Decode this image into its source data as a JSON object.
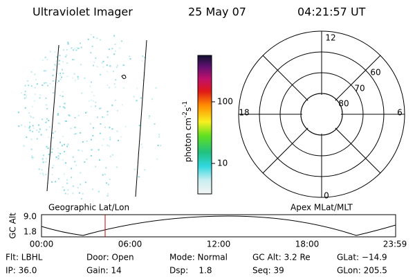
{
  "header": {
    "instrument": "Ultraviolet Imager",
    "date": "25 May 07",
    "time": "04:21:57 UT"
  },
  "colorbar": {
    "label": {
      "base": "photon cm",
      "exp1": "-2",
      "unit2": "s",
      "exp2": "-1"
    },
    "ticks": [
      "100",
      "10"
    ]
  },
  "polar_plot": {
    "mlt_labels": {
      "top": "12",
      "left": "18",
      "right": "6",
      "bottom": "0"
    },
    "lat_labels": [
      "60",
      "70",
      "80"
    ]
  },
  "orbit_plot": {
    "left_title": "Geographic Lat/Lon",
    "right_title": "Apex MLat/MLT",
    "y_label": "GC Alt",
    "y_ticks": [
      "9.0",
      "1.8"
    ],
    "x_ticks": [
      "00:00",
      "06:00",
      "12:00",
      "18:00",
      "23:59"
    ]
  },
  "info": {
    "rows": [
      [
        "Flt: LBHL",
        "Door: Open",
        "Mode: Normal",
        "GC Alt: 3.2 Re",
        "GLat: −14.9"
      ],
      [
        "IP: 36.0",
        "Gain: 14",
        "Dsp:    1.8",
        "Seq: 39",
        "GLon: 205.5"
      ]
    ]
  }
}
